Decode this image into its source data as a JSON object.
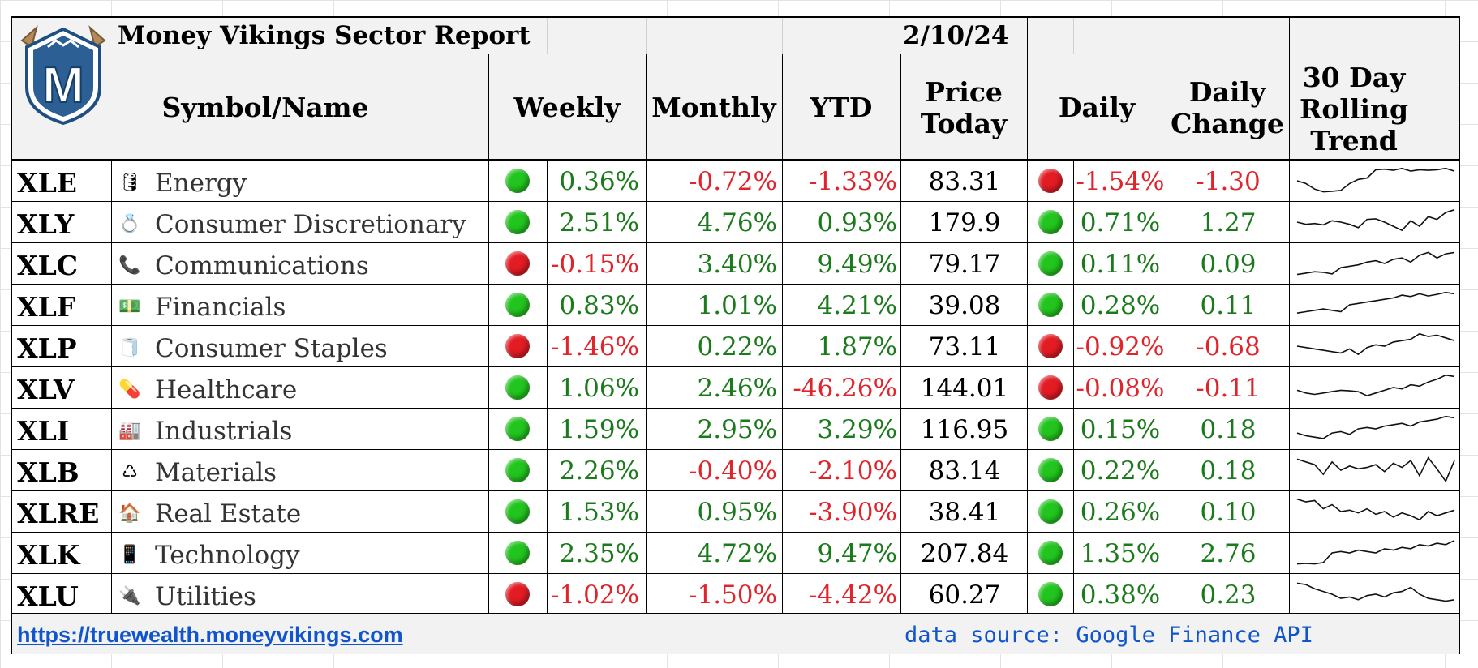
{
  "report": {
    "title": "Money Vikings Sector Report",
    "date": "2/10/24",
    "logo_letter": "M"
  },
  "headers": {
    "symbol_name": "Symbol/Name",
    "weekly": "Weekly",
    "monthly": "Monthly",
    "ytd": "YTD",
    "price_today": "Price Today",
    "daily": "Daily",
    "daily_change": "Daily Change",
    "trend": "30 Day Rolling Trend"
  },
  "colors": {
    "green": "#1b7a1b",
    "red": "#e0242b",
    "dot_green": "#22c51e",
    "dot_red": "#e31b23"
  },
  "rows": [
    {
      "symbol": "XLE",
      "icon": "oil-drum",
      "icon_glyph": "🛢",
      "name": "Energy",
      "weekly_dot": "green",
      "weekly": "0.36%",
      "weekly_color": "green",
      "monthly": "-0.72%",
      "monthly_color": "red",
      "ytd": "-1.33%",
      "ytd_color": "red",
      "price": "83.31",
      "daily_dot": "red",
      "daily": "-1.54%",
      "daily_color": "red",
      "change": "-1.30",
      "change_color": "red",
      "trend": [
        0.5,
        0.4,
        0.2,
        0.1,
        0.12,
        0.15,
        0.4,
        0.55,
        0.6,
        0.9,
        0.92,
        0.88,
        0.95,
        0.85,
        0.9,
        0.88,
        0.9,
        0.95,
        0.85
      ]
    },
    {
      "symbol": "XLY",
      "icon": "ring",
      "icon_glyph": "💍",
      "name": "Consumer Discretionary",
      "weekly_dot": "green",
      "weekly": "2.51%",
      "weekly_color": "green",
      "monthly": "4.76%",
      "monthly_color": "green",
      "ytd": "0.93%",
      "ytd_color": "green",
      "price": "179.9",
      "daily_dot": "green",
      "daily": "0.71%",
      "daily_color": "green",
      "change": "1.27",
      "change_color": "green",
      "trend": [
        0.5,
        0.42,
        0.45,
        0.4,
        0.55,
        0.5,
        0.42,
        0.3,
        0.6,
        0.62,
        0.5,
        0.35,
        0.2,
        0.55,
        0.35,
        0.7,
        0.6,
        0.85,
        0.95
      ]
    },
    {
      "symbol": "XLC",
      "icon": "telephone",
      "icon_glyph": "📞",
      "name": "Communications",
      "weekly_dot": "red",
      "weekly": "-0.15%",
      "weekly_color": "red",
      "monthly": "3.40%",
      "monthly_color": "green",
      "ytd": "9.49%",
      "ytd_color": "green",
      "price": "79.17",
      "daily_dot": "green",
      "daily": "0.11%",
      "daily_color": "green",
      "change": "0.09",
      "change_color": "green",
      "trend": [
        0.1,
        0.15,
        0.2,
        0.18,
        0.12,
        0.35,
        0.4,
        0.45,
        0.55,
        0.6,
        0.5,
        0.65,
        0.7,
        0.55,
        0.8,
        0.9,
        0.7,
        0.85,
        0.9
      ]
    },
    {
      "symbol": "XLF",
      "icon": "money",
      "icon_glyph": "💵",
      "name": "Financials",
      "weekly_dot": "green",
      "weekly": "0.83%",
      "weekly_color": "green",
      "monthly": "1.01%",
      "monthly_color": "green",
      "ytd": "4.21%",
      "ytd_color": "green",
      "price": "39.08",
      "daily_dot": "green",
      "daily": "0.28%",
      "daily_color": "green",
      "change": "0.11",
      "change_color": "green",
      "trend": [
        0.2,
        0.25,
        0.3,
        0.35,
        0.3,
        0.25,
        0.5,
        0.55,
        0.6,
        0.65,
        0.7,
        0.75,
        0.85,
        0.8,
        0.9,
        0.82,
        0.88,
        0.95,
        0.9
      ]
    },
    {
      "symbol": "XLP",
      "icon": "paper-towel",
      "icon_glyph": "🧻",
      "name": "Consumer Staples",
      "weekly_dot": "red",
      "weekly": "-1.46%",
      "weekly_color": "red",
      "monthly": "0.22%",
      "monthly_color": "green",
      "ytd": "1.87%",
      "ytd_color": "green",
      "price": "73.11",
      "daily_dot": "red",
      "daily": "-0.92%",
      "daily_color": "red",
      "change": "-0.68",
      "change_color": "red",
      "trend": [
        0.5,
        0.45,
        0.4,
        0.35,
        0.3,
        0.25,
        0.4,
        0.2,
        0.45,
        0.55,
        0.5,
        0.65,
        0.7,
        0.75,
        0.95,
        0.85,
        0.9,
        0.8,
        0.7
      ]
    },
    {
      "symbol": "XLV",
      "icon": "pill",
      "icon_glyph": "💊",
      "name": "Healthcare",
      "weekly_dot": "green",
      "weekly": "1.06%",
      "weekly_color": "green",
      "monthly": "2.46%",
      "monthly_color": "green",
      "ytd": "-46.26%",
      "ytd_color": "red",
      "price": "144.01",
      "daily_dot": "red",
      "daily": "-0.08%",
      "daily_color": "red",
      "change": "-0.11",
      "change_color": "red",
      "trend": [
        0.4,
        0.3,
        0.25,
        0.3,
        0.35,
        0.4,
        0.38,
        0.35,
        0.2,
        0.3,
        0.4,
        0.5,
        0.45,
        0.6,
        0.55,
        0.7,
        0.8,
        0.95,
        0.9
      ]
    },
    {
      "symbol": "XLI",
      "icon": "factory",
      "icon_glyph": "🏭",
      "name": "Industrials",
      "weekly_dot": "green",
      "weekly": "1.59%",
      "weekly_color": "green",
      "monthly": "2.95%",
      "monthly_color": "green",
      "ytd": "3.29%",
      "ytd_color": "green",
      "price": "116.95",
      "daily_dot": "green",
      "daily": "0.15%",
      "daily_color": "green",
      "change": "0.18",
      "change_color": "green",
      "trend": [
        0.35,
        0.25,
        0.2,
        0.15,
        0.35,
        0.4,
        0.3,
        0.5,
        0.55,
        0.5,
        0.6,
        0.65,
        0.7,
        0.6,
        0.75,
        0.8,
        0.85,
        0.95,
        0.9
      ]
    },
    {
      "symbol": "XLB",
      "icon": "recycle",
      "icon_glyph": "♺",
      "name": "Materials",
      "weekly_dot": "green",
      "weekly": "2.26%",
      "weekly_color": "green",
      "monthly": "-0.40%",
      "monthly_color": "red",
      "ytd": "-2.10%",
      "ytd_color": "red",
      "price": "83.14",
      "daily_dot": "green",
      "daily": "0.22%",
      "daily_color": "green",
      "change": "0.18",
      "change_color": "green",
      "trend": [
        0.9,
        0.8,
        0.7,
        0.35,
        0.8,
        0.5,
        0.65,
        0.55,
        0.6,
        0.7,
        0.45,
        0.75,
        0.6,
        0.85,
        0.3,
        0.95,
        0.55,
        0.1,
        0.85
      ]
    },
    {
      "symbol": "XLRE",
      "icon": "house",
      "icon_glyph": "🏠",
      "name": "Real Estate",
      "weekly_dot": "green",
      "weekly": "1.53%",
      "weekly_color": "green",
      "monthly": "0.95%",
      "monthly_color": "green",
      "ytd": "-3.90%",
      "ytd_color": "red",
      "price": "38.41",
      "daily_dot": "green",
      "daily": "0.26%",
      "daily_color": "green",
      "change": "0.10",
      "change_color": "green",
      "trend": [
        0.95,
        0.85,
        0.9,
        0.6,
        0.75,
        0.5,
        0.55,
        0.45,
        0.6,
        0.4,
        0.5,
        0.3,
        0.45,
        0.35,
        0.2,
        0.5,
        0.35,
        0.45,
        0.55
      ]
    },
    {
      "symbol": "XLK",
      "icon": "mobile-phone",
      "icon_glyph": "📱",
      "name": "Technology",
      "weekly_dot": "green",
      "weekly": "2.35%",
      "weekly_color": "green",
      "monthly": "4.72%",
      "monthly_color": "green",
      "ytd": "9.47%",
      "ytd_color": "green",
      "price": "207.84",
      "daily_dot": "green",
      "daily": "1.35%",
      "daily_color": "green",
      "change": "2.76",
      "change_color": "green",
      "trend": [
        0.1,
        0.12,
        0.1,
        0.15,
        0.5,
        0.55,
        0.5,
        0.6,
        0.55,
        0.5,
        0.65,
        0.6,
        0.7,
        0.65,
        0.8,
        0.75,
        0.85,
        0.8,
        0.95
      ]
    },
    {
      "symbol": "XLU",
      "icon": "electric-plug",
      "icon_glyph": "🔌",
      "name": "Utilities",
      "weekly_dot": "red",
      "weekly": "-1.02%",
      "weekly_color": "red",
      "monthly": "-1.50%",
      "monthly_color": "red",
      "ytd": "-4.42%",
      "ytd_color": "red",
      "price": "60.27",
      "daily_dot": "green",
      "daily": "0.38%",
      "daily_color": "green",
      "change": "0.23",
      "change_color": "green",
      "trend": [
        0.9,
        0.85,
        0.7,
        0.6,
        0.5,
        0.35,
        0.4,
        0.3,
        0.45,
        0.5,
        0.4,
        0.55,
        0.6,
        0.75,
        0.5,
        0.35,
        0.3,
        0.25,
        0.3
      ]
    }
  ],
  "footer": {
    "link": "https://truewealth.moneyvikings.com",
    "source": "data source: Google Finance API"
  }
}
